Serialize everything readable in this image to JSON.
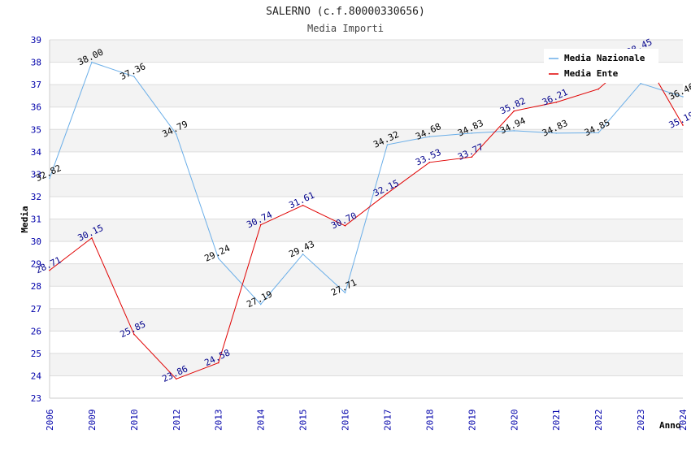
{
  "chart_data": {
    "type": "line",
    "title": "SALERNO (c.f.80000330656)",
    "subtitle": "Media Importi",
    "xlabel": "Anno",
    "ylabel": "Media",
    "ylim": [
      23,
      39
    ],
    "y_ticks": [
      23,
      24,
      25,
      26,
      27,
      28,
      29,
      30,
      31,
      32,
      33,
      34,
      35,
      36,
      37,
      38,
      39
    ],
    "categories": [
      "2006",
      "2009",
      "2010",
      "2012",
      "2013",
      "2014",
      "2015",
      "2016",
      "2017",
      "2018",
      "2019",
      "2020",
      "2021",
      "2022",
      "2023",
      "2024"
    ],
    "grid": true,
    "legend_position": "top-right",
    "series": [
      {
        "name": "Media Nazionale",
        "color": "#6aaee8",
        "label_color": "#000000",
        "values": [
          32.82,
          38.0,
          37.36,
          34.79,
          29.24,
          27.19,
          29.43,
          27.71,
          34.32,
          34.68,
          34.83,
          34.94,
          34.83,
          34.85,
          37.05,
          36.46
        ],
        "labels": [
          "32.82",
          "38.00",
          "37.36",
          "34.79",
          "29.24",
          "27.19",
          "29.43",
          "27.71",
          "34.32",
          "34.68",
          "34.83",
          "34.94",
          "34.83",
          "34.85",
          "",
          "36.46"
        ]
      },
      {
        "name": "Media Ente",
        "color": "#e00000",
        "label_color": "#00008b",
        "values": [
          28.71,
          30.15,
          25.85,
          23.86,
          24.58,
          30.74,
          31.61,
          30.7,
          32.15,
          33.53,
          33.77,
          35.82,
          36.21,
          36.8,
          38.45,
          35.19
        ],
        "labels": [
          "28.71",
          "30.15",
          "25.85",
          "23.86",
          "24.58",
          "30.74",
          "31.61",
          "30.70",
          "32.15",
          "33.53",
          "33.77",
          "35.82",
          "36.21",
          "",
          "38.45",
          "35.19"
        ]
      }
    ]
  }
}
